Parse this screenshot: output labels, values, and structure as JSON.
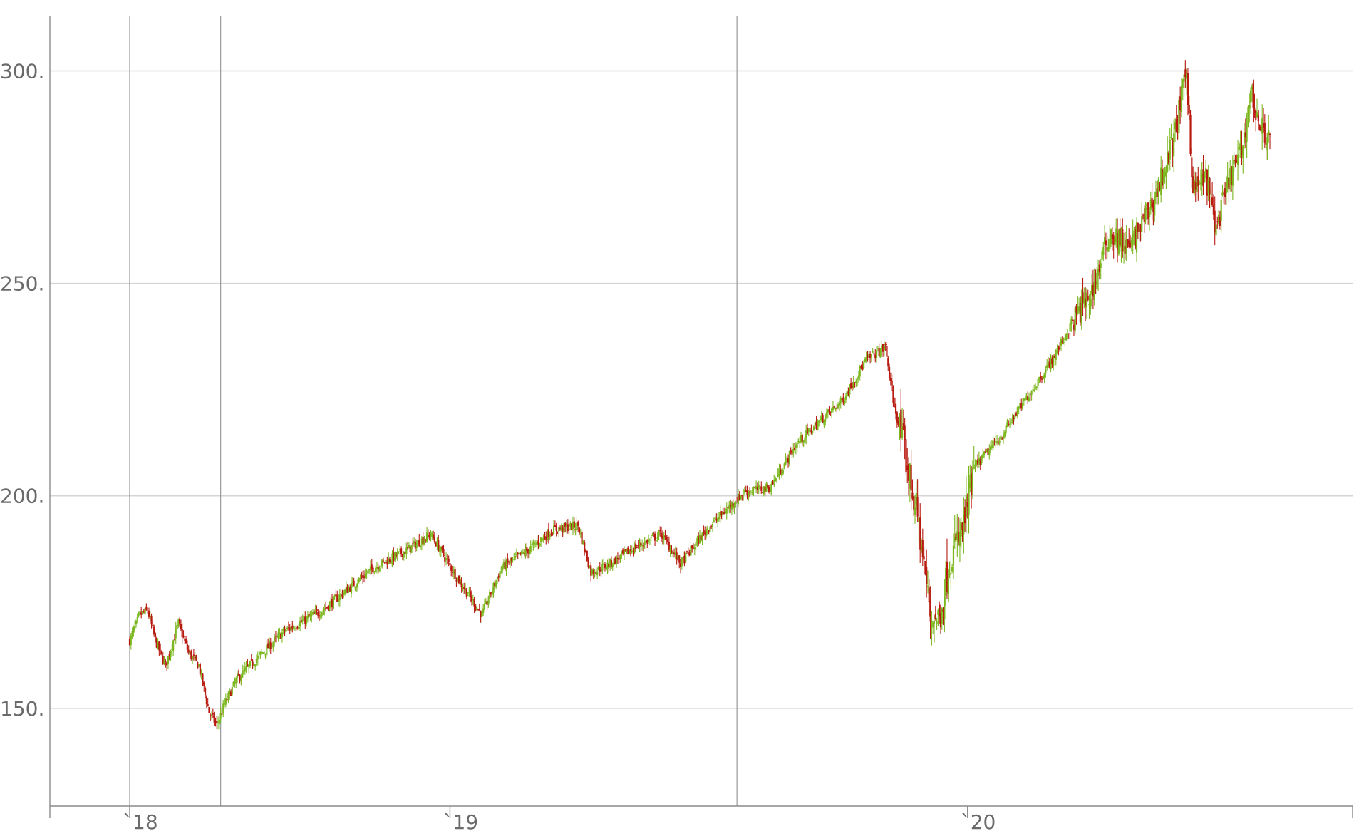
{
  "chart_data": {
    "type": "candlestick",
    "title": "",
    "xlabel": "",
    "ylabel": "",
    "ylim": [
      127,
      313
    ],
    "y_ticks": [
      {
        "value": 150,
        "label": "150."
      },
      {
        "value": 200,
        "label": "200."
      },
      {
        "value": 250,
        "label": "250."
      },
      {
        "value": 300,
        "label": "300."
      }
    ],
    "x_ticks": [
      {
        "label": "`18"
      },
      {
        "label": "`19"
      },
      {
        "label": "`20"
      }
    ],
    "grid": {
      "horizontal": true,
      "vertical": true
    },
    "colors": {
      "up": "#7cb71f",
      "down": "#b81a10",
      "grid": "#d4d4d4",
      "text": "#6a6a6a"
    },
    "anchors": [
      {
        "t": 0,
        "v": 166
      },
      {
        "t": 8,
        "v": 172
      },
      {
        "t": 14,
        "v": 173
      },
      {
        "t": 20,
        "v": 166
      },
      {
        "t": 28,
        "v": 160
      },
      {
        "t": 38,
        "v": 170
      },
      {
        "t": 46,
        "v": 163
      },
      {
        "t": 54,
        "v": 160
      },
      {
        "t": 62,
        "v": 149
      },
      {
        "t": 68,
        "v": 146
      },
      {
        "t": 74,
        "v": 151
      },
      {
        "t": 84,
        "v": 157
      },
      {
        "t": 100,
        "v": 162
      },
      {
        "t": 120,
        "v": 168
      },
      {
        "t": 150,
        "v": 173
      },
      {
        "t": 170,
        "v": 178
      },
      {
        "t": 190,
        "v": 183
      },
      {
        "t": 215,
        "v": 187
      },
      {
        "t": 235,
        "v": 191
      },
      {
        "t": 255,
        "v": 181
      },
      {
        "t": 275,
        "v": 172
      },
      {
        "t": 290,
        "v": 183
      },
      {
        "t": 310,
        "v": 187
      },
      {
        "t": 330,
        "v": 192
      },
      {
        "t": 350,
        "v": 193
      },
      {
        "t": 360,
        "v": 182
      },
      {
        "t": 375,
        "v": 184
      },
      {
        "t": 395,
        "v": 188
      },
      {
        "t": 415,
        "v": 191
      },
      {
        "t": 430,
        "v": 184
      },
      {
        "t": 450,
        "v": 192
      },
      {
        "t": 480,
        "v": 201
      },
      {
        "t": 500,
        "v": 202
      },
      {
        "t": 520,
        "v": 212
      },
      {
        "t": 540,
        "v": 218
      },
      {
        "t": 555,
        "v": 222
      },
      {
        "t": 575,
        "v": 232
      },
      {
        "t": 590,
        "v": 235
      },
      {
        "t": 595,
        "v": 224
      },
      {
        "t": 605,
        "v": 210
      },
      {
        "t": 615,
        "v": 195
      },
      {
        "t": 625,
        "v": 172
      },
      {
        "t": 632,
        "v": 171
      },
      {
        "t": 640,
        "v": 185
      },
      {
        "t": 650,
        "v": 192
      },
      {
        "t": 660,
        "v": 207
      },
      {
        "t": 680,
        "v": 214
      },
      {
        "t": 700,
        "v": 223
      },
      {
        "t": 720,
        "v": 232
      },
      {
        "t": 740,
        "v": 243
      },
      {
        "t": 750,
        "v": 247
      },
      {
        "t": 765,
        "v": 262
      },
      {
        "t": 780,
        "v": 258
      },
      {
        "t": 800,
        "v": 270
      },
      {
        "t": 815,
        "v": 284
      },
      {
        "t": 825,
        "v": 300
      },
      {
        "t": 830,
        "v": 272
      },
      {
        "t": 840,
        "v": 275
      },
      {
        "t": 848,
        "v": 263
      },
      {
        "t": 860,
        "v": 276
      },
      {
        "t": 868,
        "v": 281
      },
      {
        "t": 875,
        "v": 295
      },
      {
        "t": 882,
        "v": 287
      },
      {
        "t": 890,
        "v": 284
      }
    ],
    "x_tick_positions": [
      0,
      250,
      654
    ],
    "extra_vertical_lines": [
      71,
      474
    ],
    "t_max": 890
  }
}
